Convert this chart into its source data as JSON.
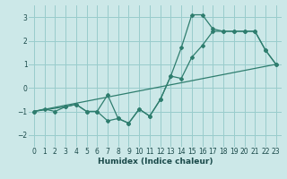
{
  "xlabel": "Humidex (Indice chaleur)",
  "ylabel": "",
  "background_color": "#cce8e8",
  "grid_color": "#99cccc",
  "line_color": "#2e7d6e",
  "xlim": [
    -0.5,
    23.5
  ],
  "ylim": [
    -2.5,
    3.5
  ],
  "xticks": [
    0,
    1,
    2,
    3,
    4,
    5,
    6,
    7,
    8,
    9,
    10,
    11,
    12,
    13,
    14,
    15,
    16,
    17,
    18,
    19,
    20,
    21,
    22,
    23
  ],
  "yticks": [
    -2,
    -1,
    0,
    1,
    2,
    3
  ],
  "line1_x": [
    0,
    1,
    2,
    3,
    4,
    5,
    6,
    7,
    8,
    9,
    10,
    11,
    12,
    13,
    14,
    15,
    16,
    17,
    18,
    19,
    20,
    21,
    22,
    23
  ],
  "line1_y": [
    -1.0,
    -0.9,
    -1.0,
    -0.8,
    -0.7,
    -1.0,
    -1.0,
    -1.4,
    -1.3,
    -1.5,
    -0.9,
    -1.2,
    -0.5,
    0.5,
    1.7,
    3.1,
    3.1,
    2.5,
    2.4,
    2.4,
    2.4,
    2.4,
    1.6,
    1.0
  ],
  "line2_x": [
    0,
    3,
    4,
    5,
    6,
    7,
    8,
    9,
    10,
    11,
    12,
    13,
    14,
    15,
    16,
    17,
    18,
    19,
    20,
    21,
    22,
    23
  ],
  "line2_y": [
    -1.0,
    -0.8,
    -0.7,
    -1.0,
    -1.0,
    -0.3,
    -1.3,
    -1.5,
    -0.9,
    -1.2,
    -0.5,
    0.5,
    0.4,
    1.3,
    1.8,
    2.4,
    2.4,
    2.4,
    2.4,
    2.4,
    1.6,
    1.0
  ],
  "line3_x": [
    0,
    23
  ],
  "line3_y": [
    -1.0,
    1.0
  ]
}
